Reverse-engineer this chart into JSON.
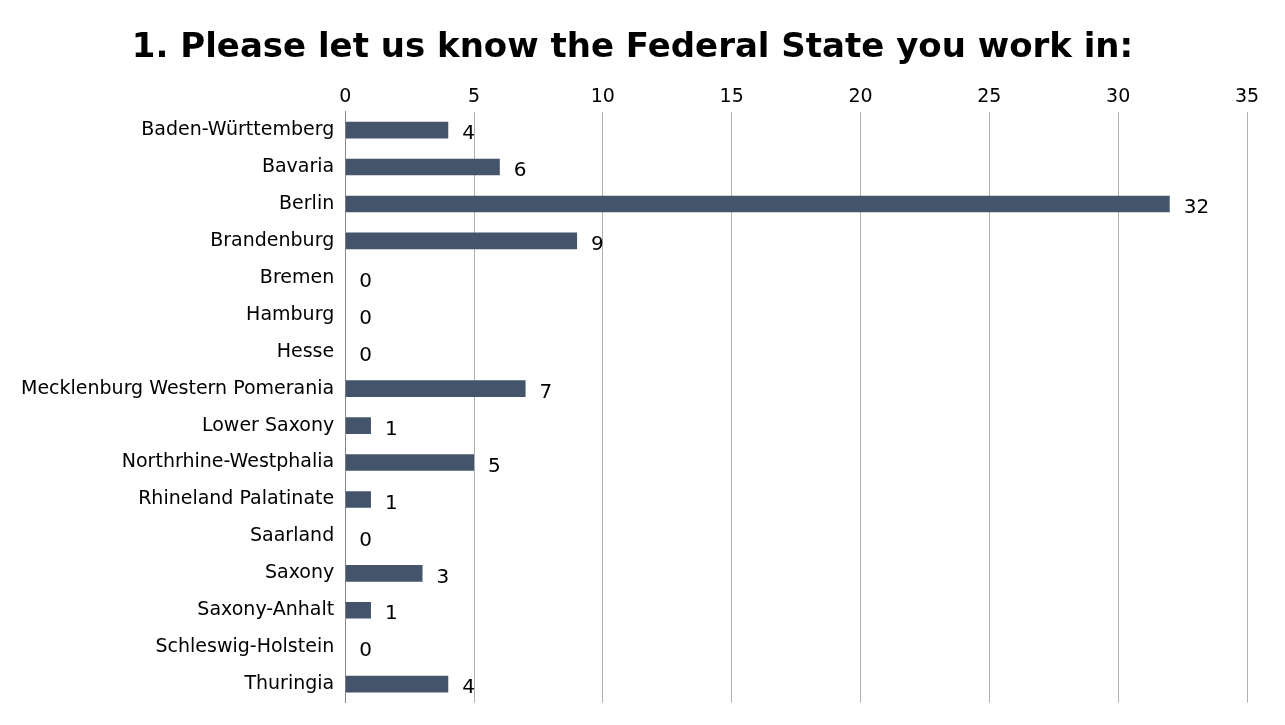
{
  "chart_data": {
    "type": "bar",
    "orientation": "horizontal",
    "title": "1. Please let us know the Federal State you work in:",
    "categories": [
      "Baden-Württemberg",
      "Bavaria",
      "Berlin",
      "Brandenburg",
      "Bremen",
      "Hamburg",
      "Hesse",
      "Mecklenburg Western Pomerania",
      "Lower Saxony",
      "Northrhine-Westphalia",
      "Rhineland Palatinate",
      "Saarland",
      "Saxony",
      "Saxony-Anhalt",
      "Schleswig-Holstein",
      "Thuringia"
    ],
    "values": [
      4,
      6,
      32,
      9,
      0,
      0,
      0,
      7,
      1,
      5,
      1,
      0,
      3,
      1,
      0,
      4
    ],
    "color": "#44546a",
    "xlim": [
      0,
      35
    ],
    "xticks": [
      0,
      5,
      10,
      15,
      20,
      25,
      30,
      35
    ],
    "grid": "x",
    "legend": false,
    "data_labels": true
  }
}
